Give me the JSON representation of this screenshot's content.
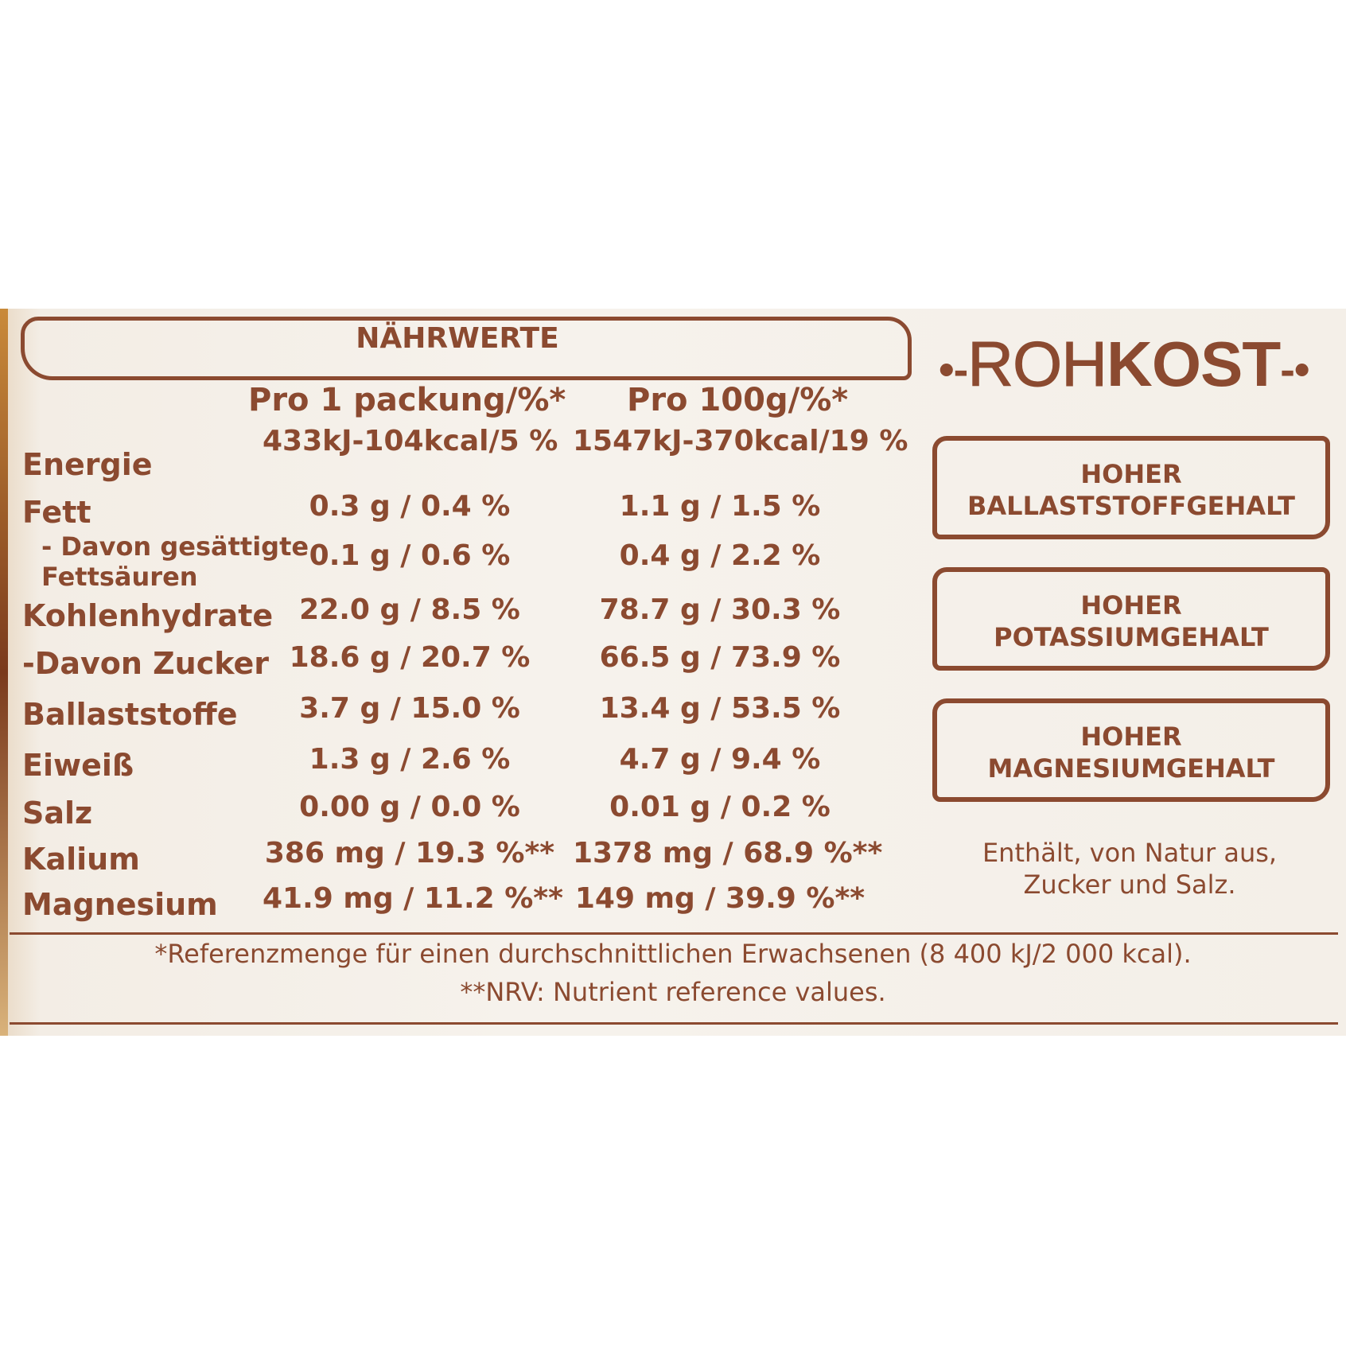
{
  "title": "NÄHRWERTE",
  "columns": [
    "Pro 1 packung/%*",
    "Pro 100g/%*"
  ],
  "rows": [
    {
      "name": "Energie",
      "per_pack": "433kJ-104kcal/5 %",
      "per_100g": "1547kJ-370kcal/19 %"
    },
    {
      "name": "Fett",
      "per_pack": "0.3 g / 0.4 %",
      "per_100g": "1.1 g / 1.5 %"
    },
    {
      "name": "- Davon gesättigte",
      "name2": "Fettsäuren",
      "per_pack": "0.1 g / 0.6 %",
      "per_100g": "0.4 g / 2.2 %"
    },
    {
      "name": "Kohlenhydrate",
      "per_pack": "22.0 g / 8.5 %",
      "per_100g": "78.7 g / 30.3 %"
    },
    {
      "name": "-Davon Zucker",
      "per_pack": "18.6 g / 20.7 %",
      "per_100g": "66.5 g / 73.9 %"
    },
    {
      "name": "Ballaststoffe",
      "per_pack": "3.7 g / 15.0 %",
      "per_100g": "13.4 g / 53.5 %"
    },
    {
      "name": "Eiweiß",
      "per_pack": "1.3 g / 2.6 %",
      "per_100g": "4.7 g / 9.4 %"
    },
    {
      "name": "Salz",
      "per_pack": "0.00 g / 0.0 %",
      "per_100g": "0.01 g / 0.2 %"
    },
    {
      "name": "Kalium",
      "per_pack": "386 mg / 19.3 %**",
      "per_100g": "1378 mg / 68.9 %**"
    },
    {
      "name": "Magnesium",
      "per_pack": "41.9 mg / 11.2 %**",
      "per_100g": "149 mg / 39.9 %**"
    }
  ],
  "brand": {
    "outline": "ROH",
    "solid": "KOST"
  },
  "claims": [
    {
      "line1": "HOHER",
      "line2": "BALLASTSTOFFGEHALT"
    },
    {
      "line1": "HOHER",
      "line2": "POTASSIUMGEHALT"
    },
    {
      "line1": "HOHER",
      "line2": "MAGNESIUMGEHALT"
    }
  ],
  "note": "Enthält, von Natur aus, Zucker und Salz.",
  "footnotes": [
    "*Referenzmenge für einen durchschnittlichen Erwachsenen (8 400 kJ/2 000 kcal).",
    "**NRV: Nutrient reference values."
  ],
  "colors": {
    "ink": "#8b4a30",
    "paper": "#f4efe8"
  }
}
